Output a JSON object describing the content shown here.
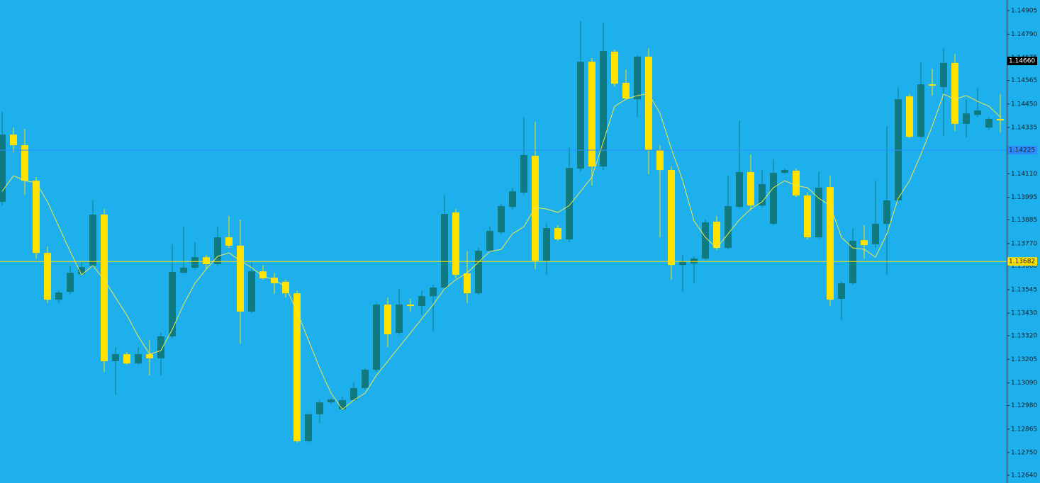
{
  "chart_data": {
    "type": "candlestick",
    "up_color": "#0f7b80",
    "down_color": "#ffe200",
    "ma_color": "#f2e84a",
    "background": "#1eb0ec",
    "ylim": [
      1.12602,
      1.14957
    ],
    "yticks": [
      1.14905,
      {
        "value": 1.1479,
        "label": "1.14790"
      },
      1.14675,
      1.14565,
      {
        "value": 1.1445,
        "label": "1.14450"
      },
      1.14335,
      {
        "value": 1.1411,
        "label": "1.14110"
      },
      1.13995,
      1.13885,
      {
        "value": 1.1377,
        "label": "1.13770"
      },
      {
        "value": 1.1366,
        "label": "1.13660"
      },
      1.13545,
      {
        "value": 1.1343,
        "label": "1.13430"
      },
      {
        "value": 1.1332,
        "label": "1.13320"
      },
      1.13205,
      {
        "value": 1.1309,
        "label": "1.13090"
      },
      {
        "value": 1.1298,
        "label": "1.12980"
      },
      1.12865,
      {
        "value": 1.1275,
        "label": "1.12750"
      },
      {
        "value": 1.1264,
        "label": "1.12640"
      }
    ],
    "current_price": {
      "value": 1.1466,
      "label": "1.14660"
    },
    "hlines": [
      {
        "value": 1.14225,
        "color": "#2f8cff"
      },
      {
        "value": 1.13682,
        "color": "#ffe200"
      }
    ],
    "open": [
      1.13973,
      1.14301,
      1.14249,
      1.14076,
      1.13724,
      1.13496,
      1.13534,
      1.1362,
      1.13662,
      1.13911,
      1.13196,
      1.1323,
      1.13185,
      1.1323,
      1.1321,
      1.13317,
      1.13627,
      1.13652,
      1.13703,
      1.13669,
      1.138,
      1.13759,
      1.13438,
      1.13634,
      1.13603,
      1.13583,
      1.13527,
      1.12806,
      1.12937,
      1.12995,
      1.12961,
      1.13006,
      1.13065,
      1.13154,
      1.13472,
      1.13334,
      1.13472,
      1.13465,
      1.13513,
      1.13555,
      1.13921,
      1.13624,
      1.13527,
      1.13734,
      1.13824,
      1.13948,
      1.14018,
      1.14197,
      1.13686,
      1.13845,
      1.1379,
      1.14135,
      1.14656,
      1.14145,
      1.14705,
      1.14553,
      1.14473,
      1.14681,
      1.14225,
      1.14128,
      1.13665,
      1.13672,
      1.13696,
      1.13876,
      1.13748,
      1.13948,
      1.14118,
      1.13955,
      1.13866,
      1.14114,
      1.14125,
      1.14004,
      1.138,
      1.14045,
      1.135,
      1.13576,
      1.13786,
      1.13766,
      1.13866,
      1.1398,
      1.14487,
      1.1429,
      1.14546,
      1.14532,
      1.1465,
      1.14353,
      1.14397,
      1.14335,
      1.14377
    ],
    "high": [
      1.14411,
      1.14335,
      1.14328,
      1.14094,
      1.13755,
      1.13541,
      1.13662,
      1.13679,
      1.1398,
      1.13938,
      1.13265,
      1.13241,
      1.13265,
      1.13299,
      1.13334,
      1.13766,
      1.13852,
      1.13776,
      1.13714,
      1.13852,
      1.13904,
      1.13886,
      1.13679,
      1.13662,
      1.13627,
      1.13593,
      1.13541,
      1.12944,
      1.13006,
      1.13016,
      1.13023,
      1.13092,
      1.13161,
      1.13479,
      1.13506,
      1.13548,
      1.135,
      1.13541,
      1.13569,
      1.14007,
      1.13938,
      1.13731,
      1.13748,
      1.13852,
      1.13962,
      1.14042,
      1.14387,
      1.14363,
      1.13869,
      1.13859,
      1.14239,
      1.14853,
      1.14674,
      1.14846,
      1.14715,
      1.14618,
      1.14687,
      1.14722,
      1.14249,
      1.14145,
      1.13714,
      1.13707,
      1.13886,
      1.13904,
      1.141,
      1.1437,
      1.14204,
      1.14128,
      1.1418,
      1.14135,
      1.14135,
      1.14018,
      1.14121,
      1.141,
      1.13583,
      1.13845,
      1.13859,
      1.14076,
      1.14342,
      1.14532,
      1.14498,
      1.14653,
      1.14622,
      1.14722,
      1.14694,
      1.14473,
      1.14529,
      1.14387,
      1.14498
    ],
    "low": [
      1.13955,
      1.14214,
      1.14007,
      1.13696,
      1.13479,
      1.13479,
      1.13524,
      1.1361,
      1.13652,
      1.13144,
      1.1303,
      1.13179,
      1.13179,
      1.13127,
      1.13127,
      1.13306,
      1.13624,
      1.13645,
      1.13645,
      1.13662,
      1.13748,
      1.13282,
      1.13431,
      1.13593,
      1.13524,
      1.13506,
      1.12799,
      1.12799,
      1.12895,
      1.12989,
      1.12954,
      1.12999,
      1.13058,
      1.13144,
      1.13265,
      1.13324,
      1.13438,
      1.1342,
      1.13341,
      1.13541,
      1.136,
      1.13479,
      1.1352,
      1.13728,
      1.13817,
      1.13935,
      1.14007,
      1.13645,
      1.13617,
      1.13783,
      1.13776,
      1.14121,
      1.14052,
      1.14128,
      1.14535,
      1.1447,
      1.14387,
      1.14107,
      1.138,
      1.13593,
      1.13534,
      1.13576,
      1.1369,
      1.13738,
      1.13741,
      1.13942,
      1.13931,
      1.13948,
      1.13859,
      1.14107,
      1.13997,
      1.1379,
      1.13793,
      1.13465,
      1.13396,
      1.13569,
      1.13696,
      1.13748,
      1.13617,
      1.13973,
      1.14284,
      1.14284,
      1.14491,
      1.14294,
      1.14318,
      1.14287,
      1.14387,
      1.14325,
      1.14311
    ],
    "close": [
      1.14301,
      1.14249,
      1.14076,
      1.13724,
      1.13496,
      1.13531,
      1.13627,
      1.13655,
      1.13911,
      1.13196,
      1.1323,
      1.13185,
      1.1323,
      1.1321,
      1.13317,
      1.13631,
      1.13652,
      1.13703,
      1.13669,
      1.138,
      1.13759,
      1.13438,
      1.13634,
      1.136,
      1.13576,
      1.13527,
      1.12806,
      1.12937,
      1.12995,
      1.13009,
      1.13006,
      1.13065,
      1.13154,
      1.13472,
      1.13327,
      1.13472,
      1.13465,
      1.13513,
      1.13555,
      1.13914,
      1.13617,
      1.13527,
      1.13734,
      1.13831,
      1.13952,
      1.14024,
      1.14201,
      1.13686,
      1.13845,
      1.1379,
      1.14138,
      1.14656,
      1.14145,
      1.14708,
      1.14549,
      1.14477,
      1.14681,
      1.14225,
      1.14128,
      1.13665,
      1.13683,
      1.13696,
      1.13873,
      1.13748,
      1.13952,
      1.14118,
      1.13955,
      1.14059,
      1.14114,
      1.14128,
      1.14004,
      1.138,
      1.14042,
      1.13496,
      1.13576,
      1.13783,
      1.13762,
      1.13866,
      1.1398,
      1.14473,
      1.1429,
      1.14546,
      1.14539,
      1.1465,
      1.14353,
      1.14404,
      1.14418,
      1.14377,
      1.1437
    ],
    "ma": [
      1.14024,
      1.141,
      1.14076,
      1.14066,
      1.13973,
      1.13852,
      1.13731,
      1.13617,
      1.13662,
      1.13593,
      1.13506,
      1.1342,
      1.13317,
      1.1323,
      1.13248,
      1.13351,
      1.13472,
      1.13576,
      1.13645,
      1.13707,
      1.13724,
      1.13686,
      1.13652,
      1.1361,
      1.13593,
      1.13558,
      1.13438,
      1.13299,
      1.13161,
      1.1304,
      1.12961,
      1.13006,
      1.1304,
      1.13127,
      1.13196,
      1.13265,
      1.13334,
      1.13403,
      1.13472,
      1.13548,
      1.13593,
      1.13627,
      1.13679,
      1.13731,
      1.13741,
      1.13817,
      1.13852,
      1.13945,
      1.13938,
      1.13921,
      1.13955,
      1.14024,
      1.14094,
      1.14266,
      1.14439,
      1.14473,
      1.14491,
      1.14501,
      1.14404,
      1.14232,
      1.14076,
      1.1388,
      1.138,
      1.13748,
      1.13817,
      1.13886,
      1.13938,
      1.13973,
      1.14042,
      1.14076,
      1.14052,
      1.14042,
      1.1399,
      1.13955,
      1.138,
      1.13748,
      1.13741,
      1.13703,
      1.13817,
      1.1399,
      1.14076,
      1.14204,
      1.14342,
      1.14498,
      1.14473,
      1.14491,
      1.14463,
      1.14439,
      1.14387
    ]
  }
}
